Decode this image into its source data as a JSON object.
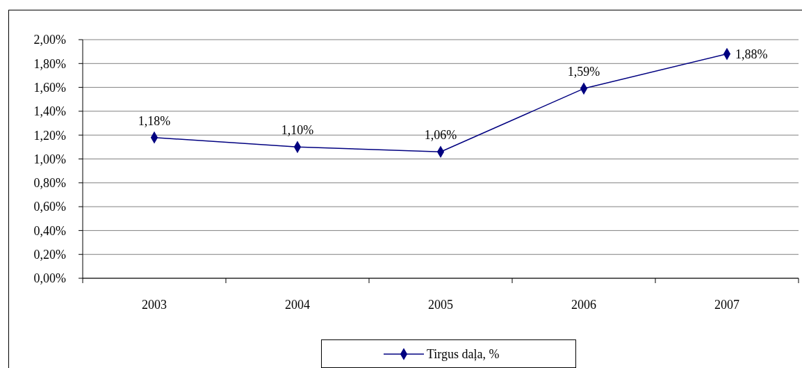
{
  "chart_data": {
    "type": "line",
    "categories": [
      "2003",
      "2004",
      "2005",
      "2006",
      "2007"
    ],
    "series": [
      {
        "name": "Tirgus daļa, %",
        "color": "#000080",
        "values": [
          1.18,
          1.1,
          1.06,
          1.59,
          1.88
        ],
        "value_labels": [
          "1,18%",
          "1,10%",
          "1,06%",
          "1,59%",
          "1,88%"
        ]
      }
    ],
    "ylim": [
      0,
      2
    ],
    "yticks": [
      {
        "value": 0,
        "label": "0,00%"
      },
      {
        "value": 0.2,
        "label": "0,20%"
      },
      {
        "value": 0.4,
        "label": "0,40%"
      },
      {
        "value": 0.6,
        "label": "0,60%"
      },
      {
        "value": 0.8,
        "label": "0,80%"
      },
      {
        "value": 1,
        "label": "1,00%"
      },
      {
        "value": 1.2,
        "label": "1,20%"
      },
      {
        "value": 1.4,
        "label": "1,40%"
      },
      {
        "value": 1.6,
        "label": "1,60%"
      },
      {
        "value": 1.8,
        "label": "1,80%"
      },
      {
        "value": 2,
        "label": "2,00%"
      }
    ],
    "grid": "y",
    "legend": "bottom",
    "marker": "diamond",
    "line_style": "solid"
  }
}
